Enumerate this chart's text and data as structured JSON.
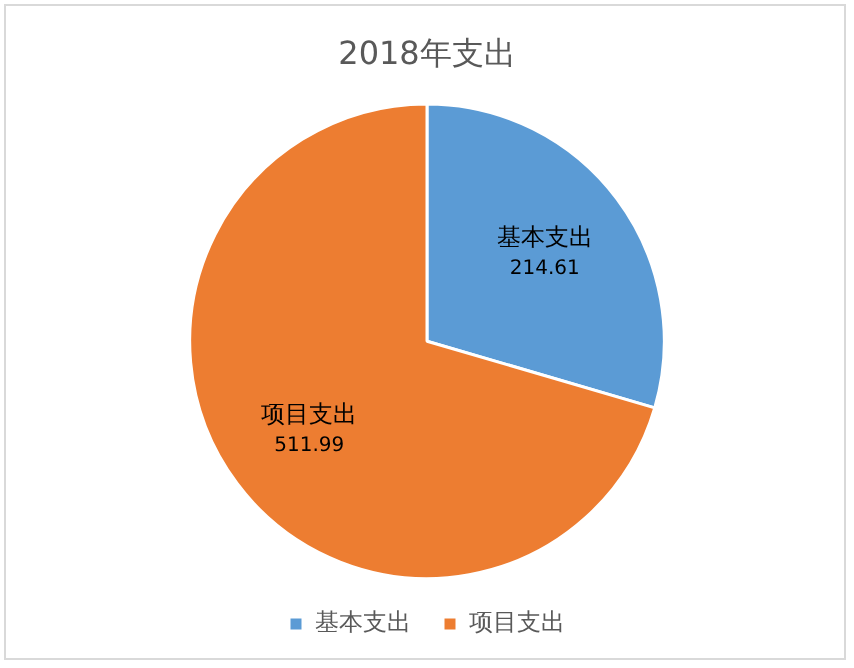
{
  "chart_data": {
    "type": "pie",
    "title": "2018年支出",
    "categories": [
      "基本支出",
      "项目支出"
    ],
    "values": [
      214.61,
      511.99
    ],
    "colors": [
      "#5b9bd5",
      "#ed7d31"
    ],
    "data_labels": true,
    "legend": "bottom"
  }
}
